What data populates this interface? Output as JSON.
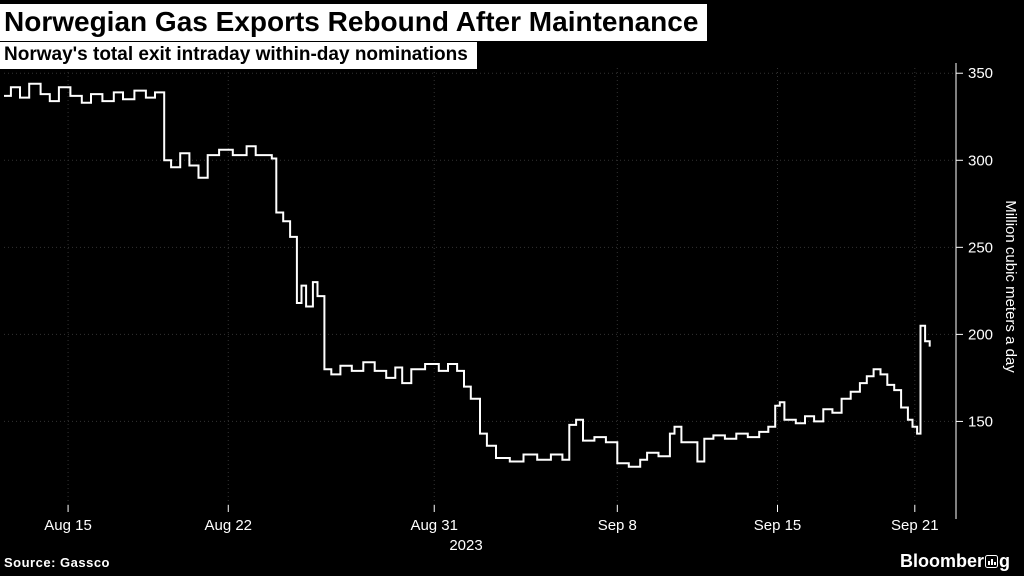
{
  "header": {
    "title": "Norwegian Gas Exports Rebound After Maintenance",
    "subtitle": "Norway's total exit intraday within-day nominations"
  },
  "footer": {
    "source": "Source: Gassco",
    "brand_prefix": "Bloomber",
    "brand_suffix": "g"
  },
  "colors": {
    "background": "#000000",
    "foreground": "#ffffff",
    "grid": "#333333",
    "title_chip_bg": "#ffffff",
    "title_text": "#000000",
    "line": "#ffffff"
  },
  "chart_data": {
    "type": "line",
    "step": true,
    "title": "Norwegian Gas Exports Rebound After Maintenance",
    "subtitle": "Norway's total exit intraday within-day nominations",
    "ylabel": "Million cubic meters a day",
    "year_label": "2023",
    "x_unit": "days since Aug 12, 2023",
    "xlim": [
      0.2,
      41.8
    ],
    "ylim": [
      102,
      353
    ],
    "y_ticks": [
      150,
      200,
      250,
      300,
      350
    ],
    "x_ticks": [
      {
        "pos": 3,
        "label": "Aug 15"
      },
      {
        "pos": 10,
        "label": "Aug 22"
      },
      {
        "pos": 19,
        "label": "Aug 31"
      },
      {
        "pos": 27,
        "label": "Sep 8"
      },
      {
        "pos": 34,
        "label": "Sep 15"
      },
      {
        "pos": 40,
        "label": "Sep 21"
      }
    ],
    "grid": true,
    "legend": false,
    "points": [
      [
        0.2,
        337
      ],
      [
        0.5,
        342
      ],
      [
        0.9,
        336
      ],
      [
        1.3,
        344
      ],
      [
        1.8,
        338
      ],
      [
        2.2,
        334
      ],
      [
        2.6,
        342
      ],
      [
        3.1,
        337
      ],
      [
        3.6,
        333
      ],
      [
        4.0,
        338
      ],
      [
        4.5,
        334
      ],
      [
        5.0,
        339
      ],
      [
        5.4,
        335
      ],
      [
        5.9,
        340
      ],
      [
        6.4,
        336
      ],
      [
        6.8,
        339
      ],
      [
        7.2,
        300
      ],
      [
        7.5,
        296
      ],
      [
        7.9,
        304
      ],
      [
        8.3,
        297
      ],
      [
        8.7,
        290
      ],
      [
        9.1,
        303
      ],
      [
        9.6,
        306
      ],
      [
        10.2,
        303
      ],
      [
        10.8,
        308
      ],
      [
        11.2,
        303
      ],
      [
        11.9,
        301
      ],
      [
        12.1,
        270
      ],
      [
        12.4,
        265
      ],
      [
        12.7,
        256
      ],
      [
        13.0,
        218
      ],
      [
        13.2,
        228
      ],
      [
        13.4,
        216
      ],
      [
        13.7,
        230
      ],
      [
        13.9,
        222
      ],
      [
        14.2,
        180
      ],
      [
        14.5,
        177
      ],
      [
        14.9,
        182
      ],
      [
        15.4,
        179
      ],
      [
        15.9,
        184
      ],
      [
        16.4,
        179
      ],
      [
        16.9,
        175
      ],
      [
        17.3,
        181
      ],
      [
        17.6,
        172
      ],
      [
        18.0,
        180
      ],
      [
        18.6,
        183
      ],
      [
        19.2,
        179
      ],
      [
        19.6,
        183
      ],
      [
        20.0,
        179
      ],
      [
        20.3,
        170
      ],
      [
        20.6,
        163
      ],
      [
        21.0,
        143
      ],
      [
        21.3,
        136
      ],
      [
        21.7,
        129
      ],
      [
        22.3,
        127
      ],
      [
        22.9,
        131
      ],
      [
        23.5,
        128
      ],
      [
        24.1,
        131
      ],
      [
        24.6,
        128
      ],
      [
        24.9,
        148
      ],
      [
        25.2,
        151
      ],
      [
        25.5,
        139
      ],
      [
        26.0,
        141
      ],
      [
        26.5,
        138
      ],
      [
        27.0,
        126
      ],
      [
        27.5,
        124
      ],
      [
        28.0,
        128
      ],
      [
        28.3,
        132
      ],
      [
        28.8,
        130
      ],
      [
        29.3,
        143
      ],
      [
        29.5,
        147
      ],
      [
        29.8,
        138
      ],
      [
        30.2,
        138
      ],
      [
        30.5,
        127
      ],
      [
        30.8,
        140
      ],
      [
        31.2,
        142
      ],
      [
        31.7,
        140
      ],
      [
        32.2,
        143
      ],
      [
        32.7,
        141
      ],
      [
        33.2,
        144
      ],
      [
        33.6,
        147
      ],
      [
        33.9,
        159
      ],
      [
        34.1,
        161
      ],
      [
        34.3,
        151
      ],
      [
        34.8,
        149
      ],
      [
        35.2,
        153
      ],
      [
        35.6,
        150
      ],
      [
        36.0,
        157
      ],
      [
        36.4,
        155
      ],
      [
        36.8,
        163
      ],
      [
        37.2,
        167
      ],
      [
        37.6,
        172
      ],
      [
        37.9,
        176
      ],
      [
        38.2,
        180
      ],
      [
        38.5,
        177
      ],
      [
        38.8,
        171
      ],
      [
        39.1,
        168
      ],
      [
        39.4,
        158
      ],
      [
        39.7,
        151
      ],
      [
        39.9,
        147
      ],
      [
        40.1,
        143
      ],
      [
        40.25,
        205
      ],
      [
        40.45,
        196
      ],
      [
        40.65,
        193
      ]
    ]
  }
}
